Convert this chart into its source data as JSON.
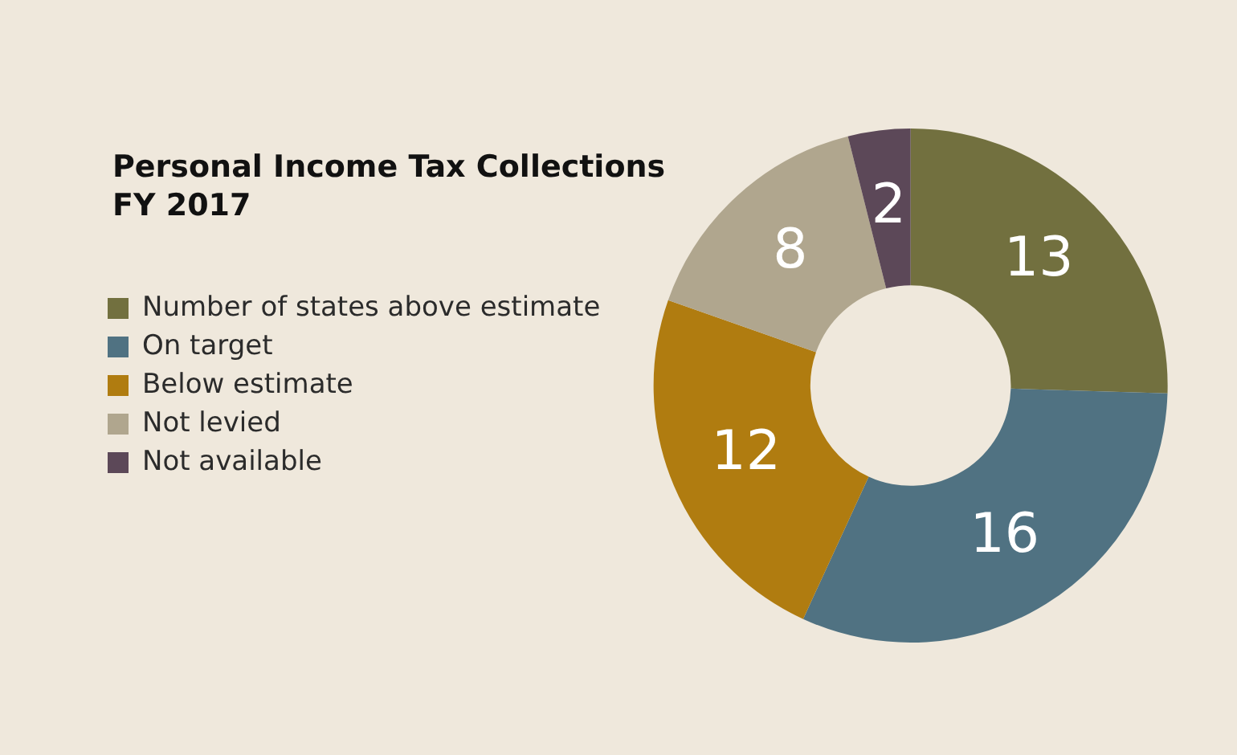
{
  "chart_data": {
    "type": "donut",
    "title": "Personal Income Tax Collections\nFY 2017",
    "categories": [
      "Number of states above estimate",
      "On target",
      "Below estimate",
      "Not levied",
      "Not available"
    ],
    "values": [
      13,
      16,
      12,
      8,
      2
    ],
    "colors": [
      "#72703f",
      "#507282",
      "#b07c10",
      "#b0a68e",
      "#5c4858"
    ],
    "data_labels": true,
    "legend": "left"
  }
}
